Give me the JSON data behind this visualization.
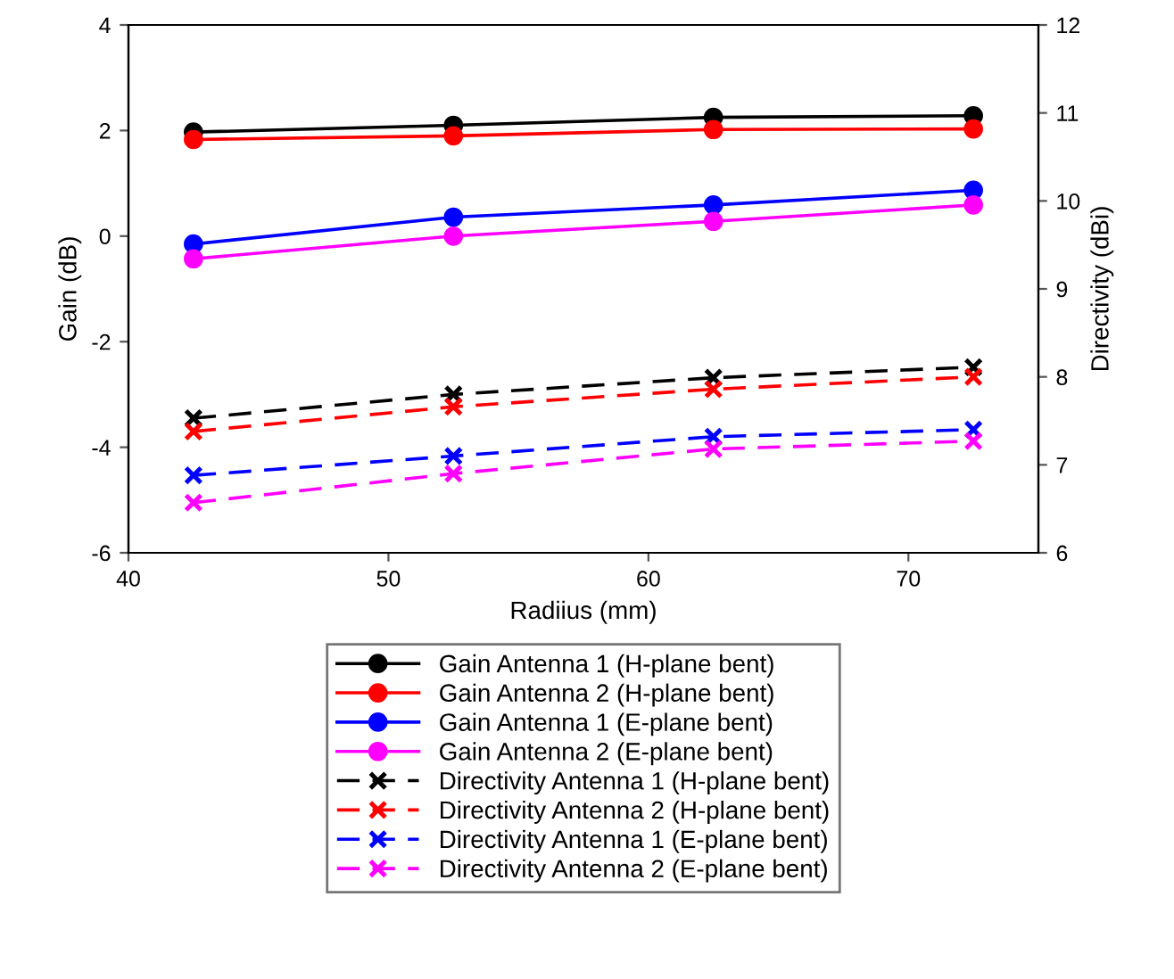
{
  "chart_data": {
    "type": "line",
    "xlabel": "Radiius (mm)",
    "ylabel": "Gain (dB)",
    "y2label": "Directivity (dBi)",
    "x": [
      42.5,
      52.5,
      62.5,
      72.5
    ],
    "xlim": [
      40,
      75
    ],
    "xticks": [
      40,
      50,
      60,
      70
    ],
    "ylim": [
      -6,
      4
    ],
    "yticks": [
      -6,
      -4,
      -2,
      0,
      2,
      4
    ],
    "y2lim": [
      6,
      12
    ],
    "y2ticks": [
      6,
      7,
      8,
      9,
      10,
      11,
      12
    ],
    "grid": false,
    "legend": "bottom",
    "series": [
      {
        "name": "Gain Antenna 1 (H-plane bent)",
        "color": "#000000",
        "values": [
          1.97,
          2.1,
          2.25,
          2.28
        ],
        "marker": "circle",
        "line_style": "solid"
      },
      {
        "name": "Gain Antenna 2 (H-plane bent)",
        "color": "#ff0000",
        "values": [
          1.83,
          1.9,
          2.02,
          2.03
        ],
        "marker": "circle",
        "line_style": "solid"
      },
      {
        "name": "Gain Antenna 1 (E-plane bent)",
        "color": "#0000ff",
        "values": [
          -0.15,
          0.36,
          0.59,
          0.87
        ],
        "marker": "circle",
        "line_style": "solid"
      },
      {
        "name": "Gain Antenna 2 (E-plane bent)",
        "color": "#ff00ff",
        "values": [
          -0.43,
          0.0,
          0.28,
          0.59
        ],
        "marker": "circle",
        "line_style": "solid"
      },
      {
        "name": "Directivity Antenna 1 (H-plane bent)",
        "color": "#000000",
        "values": [
          7.53,
          7.8,
          7.99,
          8.11
        ],
        "marker": "cross",
        "line_style": "dashed",
        "axis": "y2"
      },
      {
        "name": "Directivity Antenna 2 (H-plane bent)",
        "color": "#ff0000",
        "values": [
          7.38,
          7.66,
          7.86,
          8.0
        ],
        "marker": "cross",
        "line_style": "dashed",
        "axis": "y2"
      },
      {
        "name": "Directivity Antenna 1 (E-plane bent)",
        "color": "#0000ff",
        "values": [
          6.88,
          7.1,
          7.32,
          7.4
        ],
        "marker": "cross",
        "line_style": "dashed",
        "axis": "y2"
      },
      {
        "name": "Directivity Antenna 2 (E-plane bent)",
        "color": "#ff00ff",
        "values": [
          6.57,
          6.9,
          7.18,
          7.27
        ],
        "marker": "cross",
        "line_style": "dashed",
        "axis": "y2"
      }
    ]
  }
}
